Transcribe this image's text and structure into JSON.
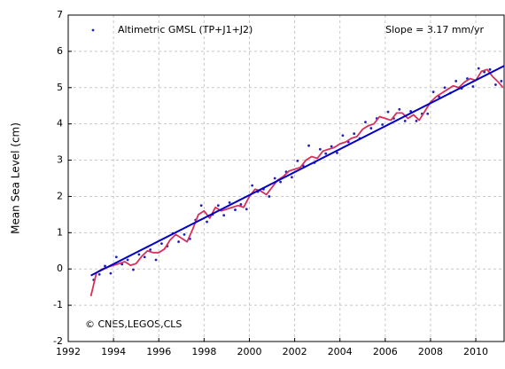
{
  "chart_data": {
    "type": "scatter",
    "y_label": "Mean Sea Level (cm)",
    "annotations": [
      "Slope = 3.17 mm/yr",
      "© CNES,LEGOS,CLS"
    ],
    "xlim": [
      1992,
      2011.25
    ],
    "xticks": [
      1992,
      1994,
      1996,
      1998,
      2000,
      2002,
      2004,
      2006,
      2008,
      2010
    ],
    "ylim": [
      -2,
      7
    ],
    "yticks": [
      -2,
      -1,
      0,
      1,
      2,
      3,
      4,
      5,
      6,
      7
    ],
    "grid": true,
    "series": [
      {
        "name": "Altimetric GMSL (TP+J1+J2)",
        "style": "points",
        "color": "#2020c0",
        "x": [
          1993.125,
          1993.375,
          1993.625,
          1993.875,
          1994.125,
          1994.375,
          1994.625,
          1994.875,
          1995.125,
          1995.375,
          1995.625,
          1995.875,
          1996.125,
          1996.375,
          1996.625,
          1996.875,
          1997.125,
          1997.375,
          1997.625,
          1997.875,
          1998.125,
          1998.375,
          1998.625,
          1998.875,
          1999.125,
          1999.375,
          1999.625,
          1999.875,
          2000.125,
          2000.375,
          2000.625,
          2000.875,
          2001.125,
          2001.375,
          2001.625,
          2001.875,
          2002.125,
          2002.375,
          2002.625,
          2002.875,
          2003.125,
          2003.375,
          2003.625,
          2003.875,
          2004.125,
          2004.375,
          2004.625,
          2004.875,
          2005.125,
          2005.375,
          2005.625,
          2005.875,
          2006.125,
          2006.375,
          2006.625,
          2006.875,
          2007.125,
          2007.375,
          2007.625,
          2007.875,
          2008.125,
          2008.375,
          2008.625,
          2008.875,
          2009.125,
          2009.375,
          2009.625,
          2009.875,
          2010.125,
          2010.375,
          2010.625,
          2010.875,
          2011.125
        ],
        "values": [
          -0.3,
          -0.15,
          0.08,
          -0.12,
          0.33,
          0.13,
          0.25,
          -0.02,
          0.4,
          0.33,
          0.53,
          0.25,
          0.7,
          0.63,
          0.98,
          0.75,
          0.95,
          0.83,
          1.35,
          1.75,
          1.3,
          1.5,
          1.75,
          1.48,
          1.83,
          1.63,
          1.78,
          1.65,
          2.3,
          2.13,
          2.2,
          2.0,
          2.5,
          2.4,
          2.68,
          2.53,
          2.98,
          2.85,
          3.4,
          2.93,
          3.3,
          3.18,
          3.38,
          3.2,
          3.68,
          3.5,
          3.73,
          3.6,
          4.05,
          3.88,
          4.15,
          3.98,
          4.33,
          4.15,
          4.4,
          4.08,
          4.35,
          4.08,
          4.28,
          4.28,
          4.88,
          4.75,
          5.0,
          4.85,
          5.18,
          4.98,
          5.25,
          5.03,
          5.53,
          5.43,
          5.5,
          5.08,
          5.18
        ]
      },
      {
        "style": "line",
        "color": "#d8305a",
        "x": [
          1993.0,
          1993.25,
          1993.5,
          1993.75,
          1994.0,
          1994.25,
          1994.5,
          1994.75,
          1995.0,
          1995.25,
          1995.5,
          1995.75,
          1996.0,
          1996.25,
          1996.5,
          1996.75,
          1997.0,
          1997.25,
          1997.5,
          1997.75,
          1998.0,
          1998.25,
          1998.5,
          1998.75,
          1999.0,
          1999.25,
          1999.5,
          1999.75,
          2000.0,
          2000.25,
          2000.5,
          2000.75,
          2001.0,
          2001.25,
          2001.5,
          2001.75,
          2002.0,
          2002.25,
          2002.5,
          2002.75,
          2003.0,
          2003.25,
          2003.5,
          2003.75,
          2004.0,
          2004.25,
          2004.5,
          2004.75,
          2005.0,
          2005.25,
          2005.5,
          2005.75,
          2006.0,
          2006.25,
          2006.5,
          2006.75,
          2007.0,
          2007.25,
          2007.5,
          2007.75,
          2008.0,
          2008.25,
          2008.5,
          2008.75,
          2009.0,
          2009.25,
          2009.5,
          2009.75,
          2010.0,
          2010.25,
          2010.5,
          2010.75,
          2011.0,
          2011.2
        ],
        "values": [
          -0.75,
          -0.1,
          0.0,
          0.05,
          0.1,
          0.15,
          0.2,
          0.1,
          0.15,
          0.35,
          0.5,
          0.45,
          0.45,
          0.55,
          0.8,
          0.95,
          0.85,
          0.75,
          1.1,
          1.5,
          1.6,
          1.4,
          1.7,
          1.6,
          1.65,
          1.7,
          1.75,
          1.7,
          2.0,
          2.2,
          2.15,
          2.05,
          2.25,
          2.45,
          2.55,
          2.7,
          2.75,
          2.8,
          3.0,
          3.1,
          3.05,
          3.25,
          3.3,
          3.35,
          3.45,
          3.5,
          3.6,
          3.65,
          3.85,
          3.95,
          4.0,
          4.2,
          4.15,
          4.1,
          4.3,
          4.3,
          4.15,
          4.25,
          4.1,
          4.35,
          4.6,
          4.75,
          4.85,
          4.95,
          5.05,
          5.0,
          5.15,
          5.25,
          5.2,
          5.45,
          5.5,
          5.3,
          5.15,
          5.0
        ]
      },
      {
        "style": "line",
        "color": "#0000c8",
        "x": [
          1993.0,
          2011.25
        ],
        "values": [
          -0.18,
          5.6
        ]
      }
    ]
  }
}
